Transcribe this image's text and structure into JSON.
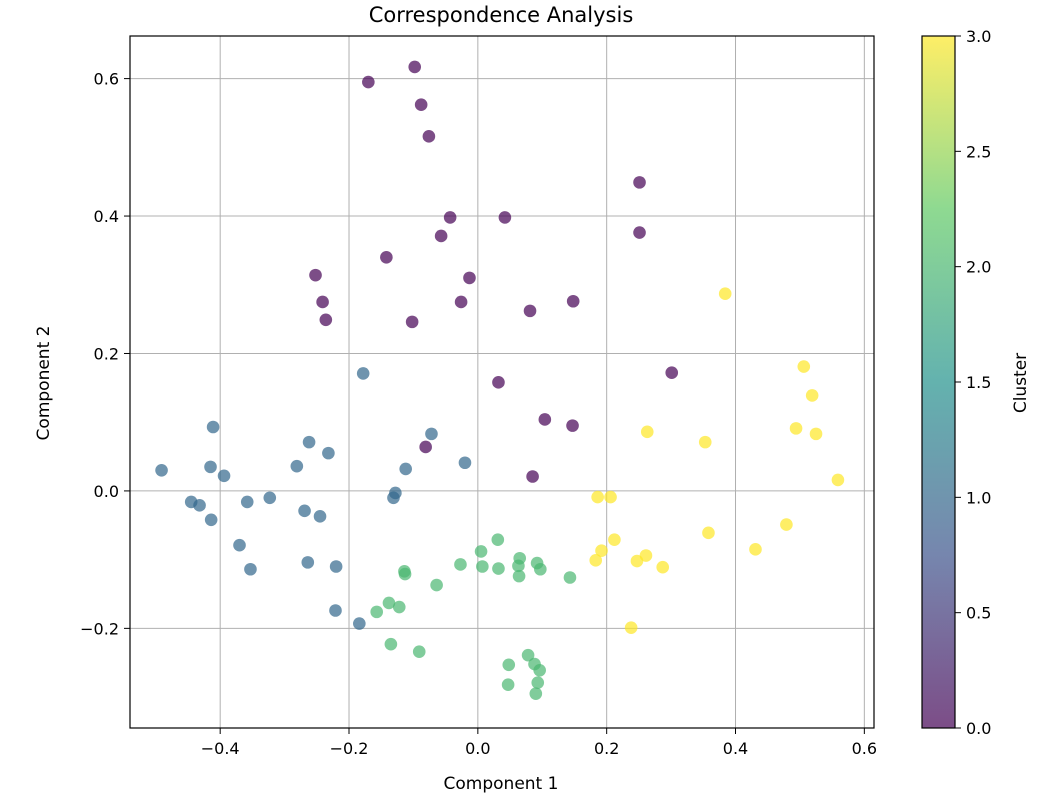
{
  "chart_data": {
    "type": "scatter",
    "title": "Correspondence Analysis",
    "xlabel": "Component 1",
    "ylabel": "Component 2",
    "xlim": [
      -0.54,
      0.615
    ],
    "ylim": [
      -0.345,
      0.662
    ],
    "x_ticks": [
      -0.4,
      -0.2,
      0.0,
      0.2,
      0.4,
      0.6
    ],
    "x_tick_labels": [
      "−0.4",
      "−0.2",
      "0.0",
      "0.2",
      "0.4",
      "0.6"
    ],
    "y_ticks": [
      -0.2,
      0.0,
      0.2,
      0.4,
      0.6
    ],
    "y_tick_labels": [
      "−0.2",
      "0.0",
      "0.2",
      "0.4",
      "0.6"
    ],
    "grid": true,
    "colorbar": {
      "label": "Cluster",
      "range": [
        0.0,
        3.0
      ],
      "ticks": [
        0.0,
        0.5,
        1.0,
        1.5,
        2.0,
        2.5,
        3.0
      ],
      "tick_labels": [
        "0.0",
        "0.5",
        "1.0",
        "1.5",
        "2.0",
        "2.5",
        "3.0"
      ],
      "colormap": "viridis",
      "colors": [
        "#440154",
        "#3b528b",
        "#21918c",
        "#5ec962",
        "#fde725"
      ]
    },
    "point_alpha": 0.7,
    "points": [
      {
        "x": -0.17,
        "y": 0.595,
        "cluster": 0
      },
      {
        "x": -0.098,
        "y": 0.617,
        "cluster": 0
      },
      {
        "x": -0.088,
        "y": 0.562,
        "cluster": 0
      },
      {
        "x": -0.076,
        "y": 0.516,
        "cluster": 0
      },
      {
        "x": 0.251,
        "y": 0.449,
        "cluster": 0
      },
      {
        "x": 0.251,
        "y": 0.376,
        "cluster": 0
      },
      {
        "x": -0.043,
        "y": 0.398,
        "cluster": 0
      },
      {
        "x": 0.042,
        "y": 0.398,
        "cluster": 0
      },
      {
        "x": -0.057,
        "y": 0.371,
        "cluster": 0
      },
      {
        "x": -0.142,
        "y": 0.34,
        "cluster": 0
      },
      {
        "x": -0.252,
        "y": 0.314,
        "cluster": 0
      },
      {
        "x": -0.013,
        "y": 0.31,
        "cluster": 0
      },
      {
        "x": -0.241,
        "y": 0.275,
        "cluster": 0
      },
      {
        "x": -0.026,
        "y": 0.275,
        "cluster": 0
      },
      {
        "x": 0.148,
        "y": 0.276,
        "cluster": 0
      },
      {
        "x": 0.081,
        "y": 0.262,
        "cluster": 0
      },
      {
        "x": -0.236,
        "y": 0.249,
        "cluster": 0
      },
      {
        "x": -0.102,
        "y": 0.246,
        "cluster": 0
      },
      {
        "x": 0.301,
        "y": 0.172,
        "cluster": 0
      },
      {
        "x": 0.032,
        "y": 0.158,
        "cluster": 0
      },
      {
        "x": 0.104,
        "y": 0.104,
        "cluster": 0
      },
      {
        "x": 0.147,
        "y": 0.095,
        "cluster": 0
      },
      {
        "x": -0.081,
        "y": 0.064,
        "cluster": 0
      },
      {
        "x": 0.085,
        "y": 0.021,
        "cluster": 0
      },
      {
        "x": -0.178,
        "y": 0.171,
        "cluster": 1
      },
      {
        "x": -0.411,
        "y": 0.093,
        "cluster": 1
      },
      {
        "x": -0.072,
        "y": 0.083,
        "cluster": 1
      },
      {
        "x": -0.262,
        "y": 0.071,
        "cluster": 1
      },
      {
        "x": -0.232,
        "y": 0.055,
        "cluster": 1
      },
      {
        "x": -0.02,
        "y": 0.041,
        "cluster": 1
      },
      {
        "x": -0.112,
        "y": 0.032,
        "cluster": 1
      },
      {
        "x": -0.281,
        "y": 0.036,
        "cluster": 1
      },
      {
        "x": -0.415,
        "y": 0.035,
        "cluster": 1
      },
      {
        "x": -0.491,
        "y": 0.03,
        "cluster": 1
      },
      {
        "x": -0.394,
        "y": 0.022,
        "cluster": 1
      },
      {
        "x": -0.128,
        "y": -0.003,
        "cluster": 1
      },
      {
        "x": -0.131,
        "y": -0.01,
        "cluster": 1
      },
      {
        "x": -0.323,
        "y": -0.01,
        "cluster": 1
      },
      {
        "x": -0.445,
        "y": -0.016,
        "cluster": 1
      },
      {
        "x": -0.358,
        "y": -0.016,
        "cluster": 1
      },
      {
        "x": -0.432,
        "y": -0.021,
        "cluster": 1
      },
      {
        "x": -0.269,
        "y": -0.029,
        "cluster": 1
      },
      {
        "x": -0.245,
        "y": -0.037,
        "cluster": 1
      },
      {
        "x": -0.414,
        "y": -0.042,
        "cluster": 1
      },
      {
        "x": -0.37,
        "y": -0.079,
        "cluster": 1
      },
      {
        "x": -0.264,
        "y": -0.104,
        "cluster": 1
      },
      {
        "x": -0.22,
        "y": -0.11,
        "cluster": 1
      },
      {
        "x": -0.353,
        "y": -0.114,
        "cluster": 1
      },
      {
        "x": -0.221,
        "y": -0.174,
        "cluster": 1
      },
      {
        "x": -0.184,
        "y": -0.193,
        "cluster": 1
      },
      {
        "x": 0.031,
        "y": -0.071,
        "cluster": 2
      },
      {
        "x": 0.005,
        "y": -0.088,
        "cluster": 2
      },
      {
        "x": 0.065,
        "y": -0.098,
        "cluster": 2
      },
      {
        "x": -0.027,
        "y": -0.107,
        "cluster": 2
      },
      {
        "x": 0.007,
        "y": -0.11,
        "cluster": 2
      },
      {
        "x": 0.063,
        "y": -0.109,
        "cluster": 2
      },
      {
        "x": 0.092,
        "y": -0.105,
        "cluster": 2
      },
      {
        "x": 0.032,
        "y": -0.113,
        "cluster": 2
      },
      {
        "x": 0.097,
        "y": -0.114,
        "cluster": 2
      },
      {
        "x": -0.114,
        "y": -0.117,
        "cluster": 2
      },
      {
        "x": -0.113,
        "y": -0.121,
        "cluster": 2
      },
      {
        "x": 0.064,
        "y": -0.124,
        "cluster": 2
      },
      {
        "x": 0.143,
        "y": -0.126,
        "cluster": 2
      },
      {
        "x": -0.064,
        "y": -0.137,
        "cluster": 2
      },
      {
        "x": -0.138,
        "y": -0.163,
        "cluster": 2
      },
      {
        "x": -0.122,
        "y": -0.169,
        "cluster": 2
      },
      {
        "x": -0.157,
        "y": -0.176,
        "cluster": 2
      },
      {
        "x": -0.135,
        "y": -0.223,
        "cluster": 2
      },
      {
        "x": -0.091,
        "y": -0.234,
        "cluster": 2
      },
      {
        "x": 0.078,
        "y": -0.239,
        "cluster": 2
      },
      {
        "x": 0.048,
        "y": -0.253,
        "cluster": 2
      },
      {
        "x": 0.088,
        "y": -0.252,
        "cluster": 2
      },
      {
        "x": 0.096,
        "y": -0.261,
        "cluster": 2
      },
      {
        "x": 0.093,
        "y": -0.279,
        "cluster": 2
      },
      {
        "x": 0.047,
        "y": -0.282,
        "cluster": 2
      },
      {
        "x": 0.09,
        "y": -0.295,
        "cluster": 2
      },
      {
        "x": 0.384,
        "y": 0.287,
        "cluster": 3
      },
      {
        "x": 0.506,
        "y": 0.181,
        "cluster": 3
      },
      {
        "x": 0.519,
        "y": 0.139,
        "cluster": 3
      },
      {
        "x": 0.494,
        "y": 0.091,
        "cluster": 3
      },
      {
        "x": 0.263,
        "y": 0.086,
        "cluster": 3
      },
      {
        "x": 0.525,
        "y": 0.083,
        "cluster": 3
      },
      {
        "x": 0.353,
        "y": 0.071,
        "cluster": 3
      },
      {
        "x": 0.559,
        "y": 0.016,
        "cluster": 3
      },
      {
        "x": 0.186,
        "y": -0.009,
        "cluster": 3
      },
      {
        "x": 0.206,
        "y": -0.009,
        "cluster": 3
      },
      {
        "x": 0.479,
        "y": -0.049,
        "cluster": 3
      },
      {
        "x": 0.358,
        "y": -0.061,
        "cluster": 3
      },
      {
        "x": 0.212,
        "y": -0.071,
        "cluster": 3
      },
      {
        "x": 0.431,
        "y": -0.085,
        "cluster": 3
      },
      {
        "x": 0.192,
        "y": -0.087,
        "cluster": 3
      },
      {
        "x": 0.261,
        "y": -0.094,
        "cluster": 3
      },
      {
        "x": 0.183,
        "y": -0.101,
        "cluster": 3
      },
      {
        "x": 0.247,
        "y": -0.102,
        "cluster": 3
      },
      {
        "x": 0.287,
        "y": -0.111,
        "cluster": 3
      },
      {
        "x": 0.238,
        "y": -0.199,
        "cluster": 3
      }
    ]
  }
}
